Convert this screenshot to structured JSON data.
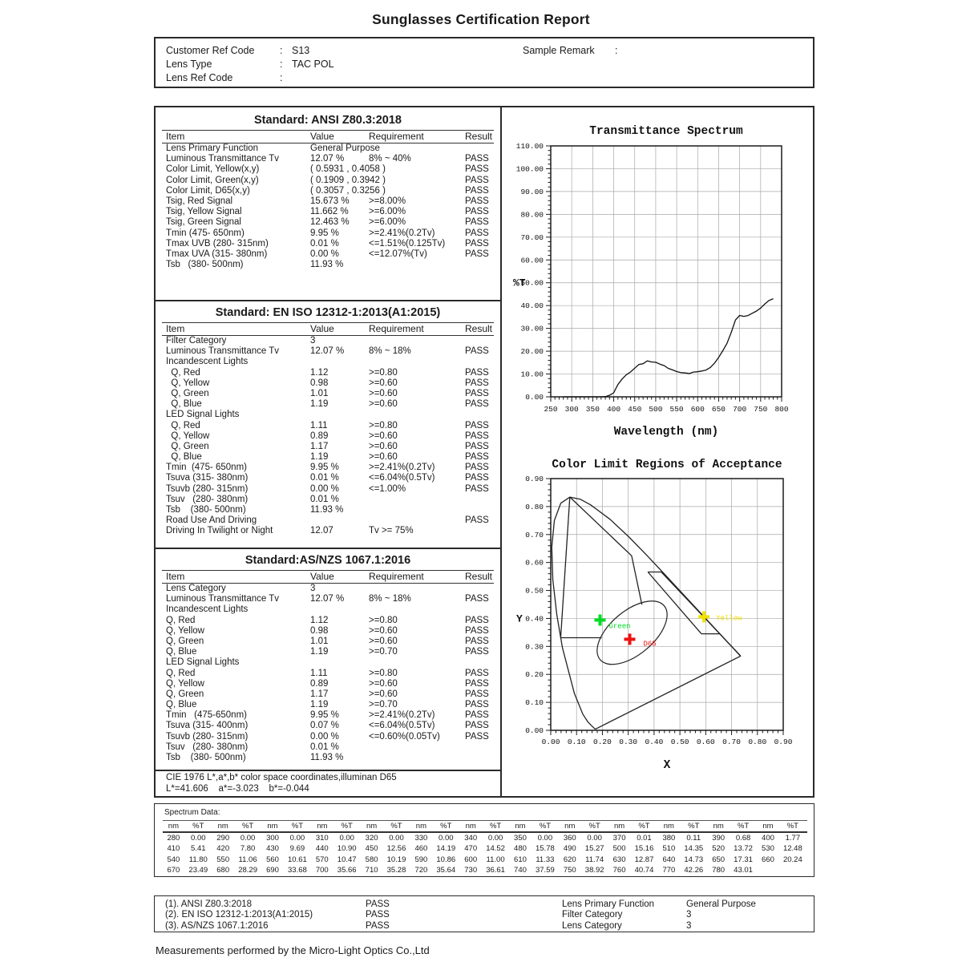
{
  "report": {
    "title": "Sunglasses Certification Report",
    "info": {
      "rows": [
        {
          "label": "Customer Ref Code",
          "colon": ":",
          "value": "S13"
        },
        {
          "label": "Lens Type",
          "colon": ":",
          "value": "TAC POL"
        },
        {
          "label": "Lens Ref Code",
          "colon": ":",
          "value": ""
        }
      ],
      "sample_remark": {
        "label": "Sample Remark",
        "colon": ":",
        "value": ""
      }
    },
    "table_columns": [
      "Item",
      "Value",
      "Requirement",
      "Result"
    ],
    "standards": [
      {
        "title": "Standard: ANSI Z80.3:2018",
        "rows": [
          [
            "Lens Primary Function",
            "General Purpose",
            "",
            ""
          ],
          [
            "Luminous Transmittance Tv",
            "12.07 %",
            "8% ~ 40%",
            "PASS"
          ],
          [
            "Color Limit, Yellow(x,y)",
            "( 0.5931 , 0.4058 )",
            "",
            "PASS"
          ],
          [
            "Color Limit, Green(x,y)",
            "( 0.1909 , 0.3942 )",
            "",
            "PASS"
          ],
          [
            "Color Limit, D65(x,y)",
            "( 0.3057 , 0.3256 )",
            "",
            "PASS"
          ],
          [
            "Tsig, Red Signal",
            "15.673 %",
            ">=8.00%",
            "PASS"
          ],
          [
            "Tsig, Yellow Signal",
            "11.662 %",
            ">=6.00%",
            "PASS"
          ],
          [
            "Tsig, Green Signal",
            "12.463 %",
            ">=6.00%",
            "PASS"
          ],
          [
            "Tmin (475- 650nm)",
            "9.95 %",
            ">=2.41%(0.2Tv)",
            "PASS"
          ],
          [
            "Tmax UVB (280- 315nm)",
            "0.01 %",
            "<=1.51%(0.125Tv)",
            "PASS"
          ],
          [
            "Tmax UVA (315- 380nm)",
            "0.00 %",
            "<=12.07%(Tv)",
            "PASS"
          ],
          [
            "Tsb   (380- 500nm)",
            "11.93 %",
            "",
            ""
          ]
        ]
      },
      {
        "title": "Standard: EN ISO 12312-1:2013(A1:2015)",
        "rows": [
          [
            "Filter Category",
            "3",
            "",
            ""
          ],
          [
            "Luminous Transmittance Tv",
            "12.07 %",
            "8% ~ 18%",
            "PASS"
          ],
          [
            "Incandescent Lights",
            "",
            "",
            ""
          ],
          [
            "  Q, Red",
            "1.12",
            ">=0.80",
            "PASS"
          ],
          [
            "  Q, Yellow",
            "0.98",
            ">=0.60",
            "PASS"
          ],
          [
            "  Q, Green",
            "1.01",
            ">=0.60",
            "PASS"
          ],
          [
            "  Q, Blue",
            "1.19",
            ">=0.60",
            "PASS"
          ],
          [
            "LED Signal Lights",
            "",
            "",
            ""
          ],
          [
            "  Q, Red",
            "1.11",
            ">=0.80",
            "PASS"
          ],
          [
            "  Q, Yellow",
            "0.89",
            ">=0.60",
            "PASS"
          ],
          [
            "  Q, Green",
            "1.17",
            ">=0.60",
            "PASS"
          ],
          [
            "  Q, Blue",
            "1.19",
            ">=0.60",
            "PASS"
          ],
          [
            "Tmin  (475- 650nm)",
            "9.95 %",
            ">=2.41%(0.2Tv)",
            "PASS"
          ],
          [
            "Tsuva (315- 380nm)",
            "0.01 %",
            "<=6.04%(0.5Tv)",
            "PASS"
          ],
          [
            "Tsuvb (280- 315nm)",
            "0.00 %",
            "<=1.00%",
            "PASS"
          ],
          [
            "Tsuv   (280- 380nm)",
            "0.01 %",
            "",
            ""
          ],
          [
            "Tsb    (380- 500nm)",
            "11.93 %",
            "",
            ""
          ],
          [
            "Road Use And Driving",
            "",
            "",
            "PASS"
          ],
          [
            "Driving In Twilight or Night",
            "12.07",
            "Tv >= 75%",
            ""
          ]
        ]
      },
      {
        "title": "Standard:AS/NZS 1067.1:2016",
        "rows": [
          [
            "Lens Category",
            "3",
            "",
            ""
          ],
          [
            "Luminous Transmittance Tv",
            "12.07 %",
            "8% ~ 18%",
            "PASS"
          ],
          [
            "Incandescent Lights",
            "",
            "",
            ""
          ],
          [
            "Q, Red",
            "1.12",
            ">=0.80",
            "PASS"
          ],
          [
            "Q, Yellow",
            "0.98",
            ">=0.60",
            "PASS"
          ],
          [
            "Q, Green",
            "1.01",
            ">=0.60",
            "PASS"
          ],
          [
            "Q, Blue",
            "1.19",
            ">=0.70",
            "PASS"
          ],
          [
            "LED Signal Lights",
            "",
            "",
            ""
          ],
          [
            "Q, Red",
            "1.11",
            ">=0.80",
            "PASS"
          ],
          [
            "Q, Yellow",
            "0.89",
            ">=0.60",
            "PASS"
          ],
          [
            "Q, Green",
            "1.17",
            ">=0.60",
            "PASS"
          ],
          [
            "Q, Blue",
            "1.19",
            ">=0.70",
            "PASS"
          ],
          [
            "Tmin   (475-650nm)",
            "9.95 %",
            ">=2.41%(0.2Tv)",
            "PASS"
          ],
          [
            "Tsuva (315- 400nm)",
            "0.07 %",
            "<=6.04%(0.5Tv)",
            "PASS"
          ],
          [
            "Tsuvb (280- 315nm)",
            "0.00 %",
            "<=0.60%(0.05Tv)",
            "PASS"
          ],
          [
            "Tsuv   (280- 380nm)",
            "0.01 %",
            "",
            ""
          ],
          [
            "Tsb    (380- 500nm)",
            "11.93 %",
            "",
            ""
          ]
        ]
      }
    ],
    "cie_note": {
      "line1": "CIE 1976 L*,a*,b* color space coordinates,illuminan D65",
      "line2": "L*=41.606    a*=-3.023    b*=-0.044"
    },
    "spectrum_section": {
      "label": "Spectrum Data:",
      "col_nm": "nm",
      "col_t": "%T",
      "pairs_per_row": 13
    },
    "summary_rows": [
      [
        "(1). ANSI Z80.3:2018",
        "PASS",
        "Lens Primary Function",
        "General Purpose"
      ],
      [
        "(2). EN ISO 12312-1:2013(A1:2015)",
        "PASS",
        "Filter Category",
        "3"
      ],
      [
        "(3). AS/NZS 1067.1:2016",
        "PASS",
        "Lens Category",
        "3"
      ]
    ],
    "footer_note": "Measurements performed by the Micro-Light Optics Co.,Ltd"
  },
  "chart_data": [
    {
      "type": "line",
      "title": "Transmittance Spectrum",
      "xlabel": "Wavelength (nm)",
      "ylabel": "%T",
      "xlim": [
        250,
        800
      ],
      "ylim": [
        0,
        110
      ],
      "x_tick_step": 50,
      "y_tick_step": 10,
      "x_minor_step": 10,
      "y_minor_step": 2,
      "grid": true,
      "line_color": "#111111",
      "x": [
        280,
        290,
        300,
        310,
        320,
        330,
        340,
        350,
        360,
        370,
        380,
        390,
        400,
        410,
        420,
        430,
        440,
        450,
        460,
        470,
        480,
        490,
        500,
        510,
        520,
        530,
        540,
        550,
        560,
        570,
        580,
        590,
        600,
        610,
        620,
        630,
        640,
        650,
        660,
        670,
        680,
        690,
        700,
        710,
        720,
        730,
        740,
        750,
        760,
        770,
        780
      ],
      "y": [
        0.0,
        0.0,
        0.0,
        0.0,
        0.0,
        0.0,
        0.0,
        0.0,
        0.0,
        0.01,
        0.11,
        0.68,
        1.77,
        5.41,
        7.8,
        9.69,
        10.9,
        12.56,
        14.19,
        14.52,
        15.78,
        15.27,
        15.16,
        14.35,
        13.72,
        12.48,
        11.8,
        11.06,
        10.61,
        10.47,
        10.19,
        10.86,
        11.0,
        11.33,
        11.74,
        12.87,
        14.73,
        17.31,
        20.24,
        23.49,
        28.29,
        33.68,
        35.66,
        35.28,
        35.64,
        36.61,
        37.59,
        38.92,
        40.74,
        42.26,
        43.01
      ]
    },
    {
      "type": "scatter",
      "title": "Color Limit Regions of Acceptance",
      "xlabel": "X",
      "ylabel": "Y",
      "xlim": [
        0,
        0.9
      ],
      "ylim": [
        0,
        0.9
      ],
      "x_tick_step": 0.1,
      "y_tick_step": 0.1,
      "minor_step": 0.02,
      "grid": true,
      "markers": [
        {
          "label": "Green",
          "x": 0.1909,
          "y": 0.3942,
          "color": "#00dd22"
        },
        {
          "label": "D65",
          "x": 0.3057,
          "y": 0.3256,
          "color": "#ee1111"
        },
        {
          "label": "Yellow",
          "x": 0.5931,
          "y": 0.4058,
          "color": "#f0e000"
        }
      ],
      "regions": {
        "spectral_locus": [
          [
            0.1741,
            0.005
          ],
          [
            0.1714,
            0.0051
          ],
          [
            0.1689,
            0.0069
          ],
          [
            0.1644,
            0.0109
          ],
          [
            0.1566,
            0.0177
          ],
          [
            0.144,
            0.0297
          ],
          [
            0.1241,
            0.0578
          ],
          [
            0.0913,
            0.1327
          ],
          [
            0.0454,
            0.295
          ],
          [
            0.0235,
            0.4127
          ],
          [
            0.0082,
            0.5384
          ],
          [
            0.0039,
            0.6548
          ],
          [
            0.0139,
            0.7502
          ],
          [
            0.0389,
            0.812
          ],
          [
            0.0743,
            0.8338
          ],
          [
            0.1142,
            0.8262
          ],
          [
            0.1547,
            0.8059
          ],
          [
            0.2296,
            0.7543
          ],
          [
            0.3016,
            0.6923
          ],
          [
            0.3731,
            0.6245
          ],
          [
            0.4441,
            0.5547
          ],
          [
            0.5125,
            0.4866
          ],
          [
            0.5752,
            0.4242
          ],
          [
            0.627,
            0.3725
          ],
          [
            0.6658,
            0.334
          ],
          [
            0.6915,
            0.3083
          ],
          [
            0.7079,
            0.292
          ],
          [
            0.719,
            0.2809
          ],
          [
            0.726,
            0.274
          ],
          [
            0.7347,
            0.2653
          ]
        ],
        "green_limit": [
          [
            [
              0.074,
              0.834
            ],
            [
              0.313,
              0.624
            ],
            [
              0.353,
              0.449
            ]
          ],
          [
            [
              0.074,
              0.834
            ],
            [
              0.0385,
              0.331
            ]
          ],
          [
            [
              0.0385,
              0.331
            ],
            [
              0.197,
              0.331
            ]
          ]
        ],
        "yellow_limit": [
          [
            [
              0.376,
              0.566
            ],
            [
              0.428,
              0.566
            ]
          ],
          [
            [
              0.376,
              0.566
            ],
            [
              0.583,
              0.345
            ]
          ],
          [
            [
              0.583,
              0.345
            ],
            [
              0.653,
              0.345
            ]
          ],
          [
            [
              0.428,
              0.566
            ],
            [
              0.734,
              0.267
            ]
          ]
        ],
        "d65_ellipse": {
          "cx": 0.315,
          "cy": 0.349,
          "rx": 0.162,
          "ry": 0.078,
          "rotation_deg": 40
        }
      }
    }
  ]
}
